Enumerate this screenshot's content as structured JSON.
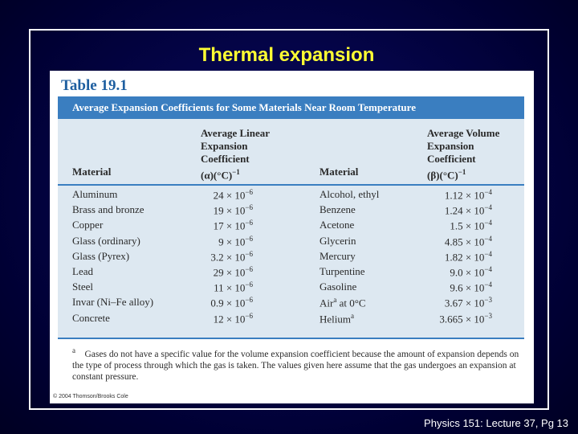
{
  "slide": {
    "title": "Thermal expansion",
    "footer": "Physics 151: Lecture 37, Pg 13"
  },
  "table": {
    "label": "Table 19.1",
    "caption": "Average Expansion Coefficients for Some Materials Near Room Temperature",
    "headers": {
      "material_1": "Material",
      "linear_lines": [
        "Average Linear",
        "Expansion",
        "Coefficient"
      ],
      "linear_unit": "(α)(°C)",
      "linear_exp": "−1",
      "material_2": "Material",
      "volume_lines": [
        "Average Volume",
        "Expansion",
        "Coefficient"
      ],
      "volume_unit": "(β)(°C)",
      "volume_exp": "−1"
    },
    "rows": [
      {
        "material": "Aluminum",
        "linear": "24 × 10",
        "linear_exp": "−6",
        "material_2": "Alcohol, ethyl",
        "volume": "1.12 × 10",
        "volume_exp": "−4"
      },
      {
        "material": "Brass and bronze",
        "linear": "19 × 10",
        "linear_exp": "−6",
        "material_2": "Benzene",
        "volume": "1.24 × 10",
        "volume_exp": "−4"
      },
      {
        "material": "Copper",
        "linear": "17 × 10",
        "linear_exp": "−6",
        "material_2": "Acetone",
        "volume": "1.5 × 10",
        "volume_exp": "−4"
      },
      {
        "material": "Glass (ordinary)",
        "linear": "9 × 10",
        "linear_exp": "−6",
        "material_2": "Glycerin",
        "volume": "4.85 × 10",
        "volume_exp": "−4"
      },
      {
        "material": "Glass (Pyrex)",
        "linear": "3.2 × 10",
        "linear_exp": "−6",
        "material_2": "Mercury",
        "volume": "1.82 × 10",
        "volume_exp": "−4"
      },
      {
        "material": "Lead",
        "linear": "29 × 10",
        "linear_exp": "−6",
        "material_2": "Turpentine",
        "volume": "9.0 × 10",
        "volume_exp": "−4"
      },
      {
        "material": "Steel",
        "linear": "11 × 10",
        "linear_exp": "−6",
        "material_2": "Gasoline",
        "volume": "9.6 × 10",
        "volume_exp": "−4"
      },
      {
        "material": "Invar (Ni–Fe alloy)",
        "linear": "0.9 × 10",
        "linear_exp": "−6",
        "material_2": "Air",
        "material_2_note": "a",
        "material_2_rest": " at 0°C",
        "volume": "3.67 × 10",
        "volume_exp": "−3"
      },
      {
        "material": "Concrete",
        "linear": "12 × 10",
        "linear_exp": "−6",
        "material_2": "Helium",
        "material_2_note": "a",
        "volume": "3.665 × 10",
        "volume_exp": "−3"
      }
    ],
    "footnote_mark": "a",
    "footnote": "Gases do not have a specific value for the volume expansion coefficient because the amount of expansion depends on the type of process through which the gas is taken. The values given here assume that the gas undergoes an expansion at constant pressure.",
    "copyright": "© 2004 Thomson/Brooks Cole"
  }
}
